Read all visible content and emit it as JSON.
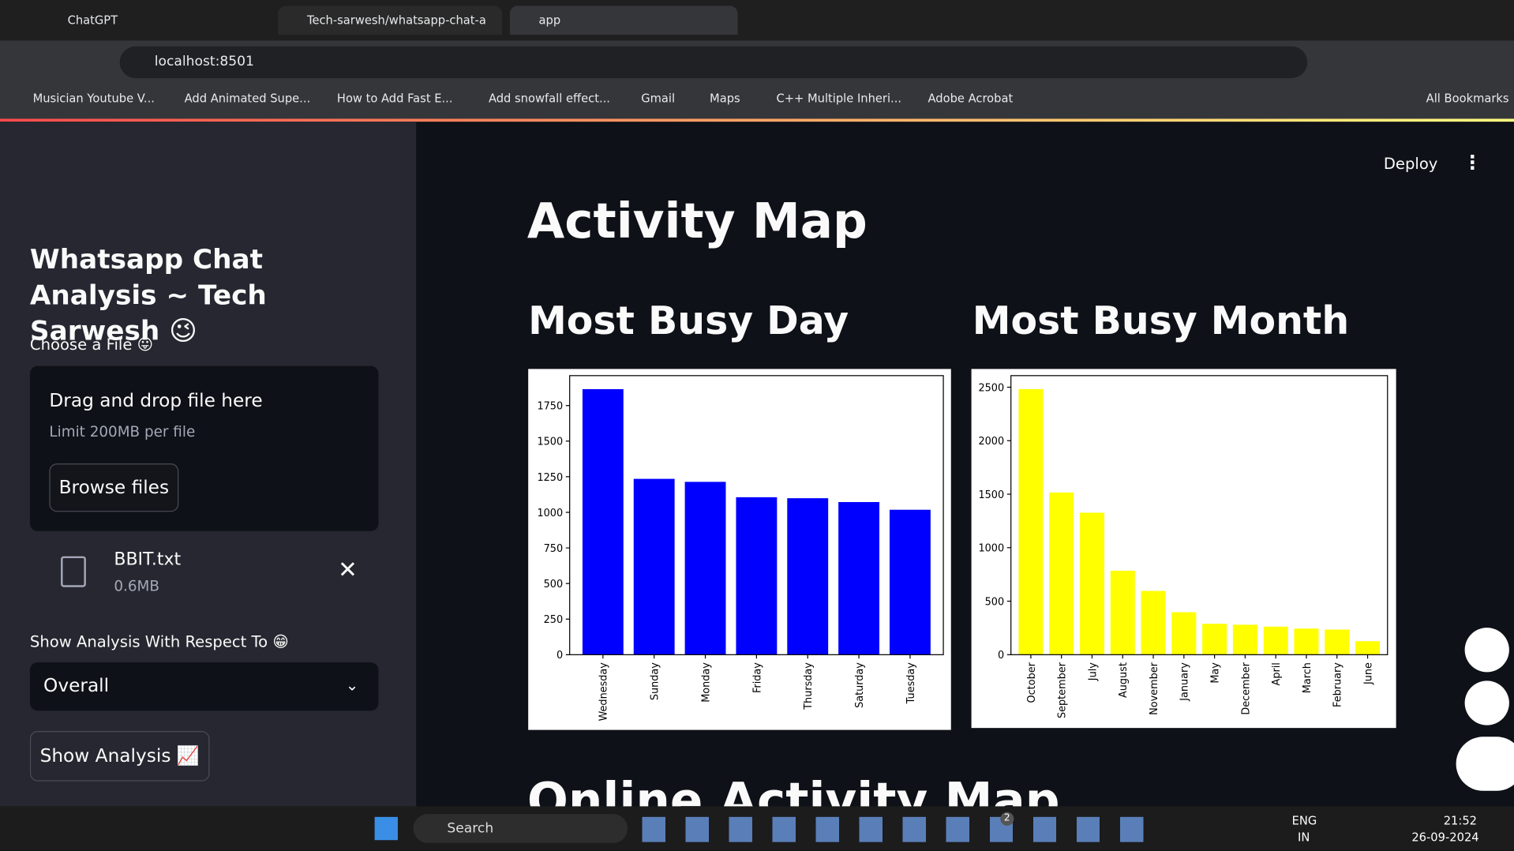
{
  "browser": {
    "tabs": [
      "ChatGPT",
      "Tech-sarwesh/whatsapp-chat-a",
      "app"
    ],
    "url": "localhost:8501",
    "bookmarks": [
      "Musician Youtube V...",
      "Add Animated Supe...",
      "How to Add Fast E...",
      "Add snowfall effect...",
      "Gmail",
      "Maps",
      "C++ Multiple Inheri...",
      "Adobe Acrobat"
    ],
    "all_bookmarks": "All Bookmarks"
  },
  "sidebar": {
    "title": "Whatsapp Chat Analysis ~ Tech Sarwesh 😉",
    "file_label": "Choose a File 😛",
    "dropzone_title": "Drag and drop file here",
    "dropzone_limit": "Limit 200MB per file",
    "browse_button": "Browse files",
    "file_name": "BBIT.txt",
    "file_size": "0.6MB",
    "select_label": "Show Analysis With Respect To 😁",
    "select_value": "Overall",
    "show_button": "Show Analysis 📈"
  },
  "main": {
    "deploy": "Deploy",
    "heading": "Activity Map",
    "next_heading": "Online Activity Map"
  },
  "chart_data": [
    {
      "type": "bar",
      "title": "Most Busy Day",
      "categories": [
        "Wednesday",
        "Sunday",
        "Monday",
        "Friday",
        "Thursday",
        "Saturday",
        "Tuesday"
      ],
      "values": [
        1865,
        1235,
        1214,
        1106,
        1099,
        1072,
        1018
      ],
      "color": "#0000ff",
      "ylim": [
        0,
        1960
      ],
      "yticks": [
        0,
        250,
        500,
        750,
        1000,
        1250,
        1500,
        1750
      ]
    },
    {
      "type": "bar",
      "title": "Most Busy Month",
      "categories": [
        "October",
        "September",
        "July",
        "August",
        "November",
        "January",
        "May",
        "December",
        "April",
        "March",
        "February",
        "June"
      ],
      "values": [
        2482,
        1516,
        1327,
        785,
        596,
        397,
        289,
        280,
        262,
        244,
        235,
        126
      ],
      "color": "#ffff00",
      "ylim": [
        0,
        2608
      ],
      "yticks": [
        0,
        500,
        1000,
        1500,
        2000,
        2500
      ]
    }
  ],
  "taskbar": {
    "search": "Search",
    "badge": "2",
    "lang": "ENG",
    "region": "IN",
    "time": "21:52",
    "date": "26-09-2024"
  }
}
